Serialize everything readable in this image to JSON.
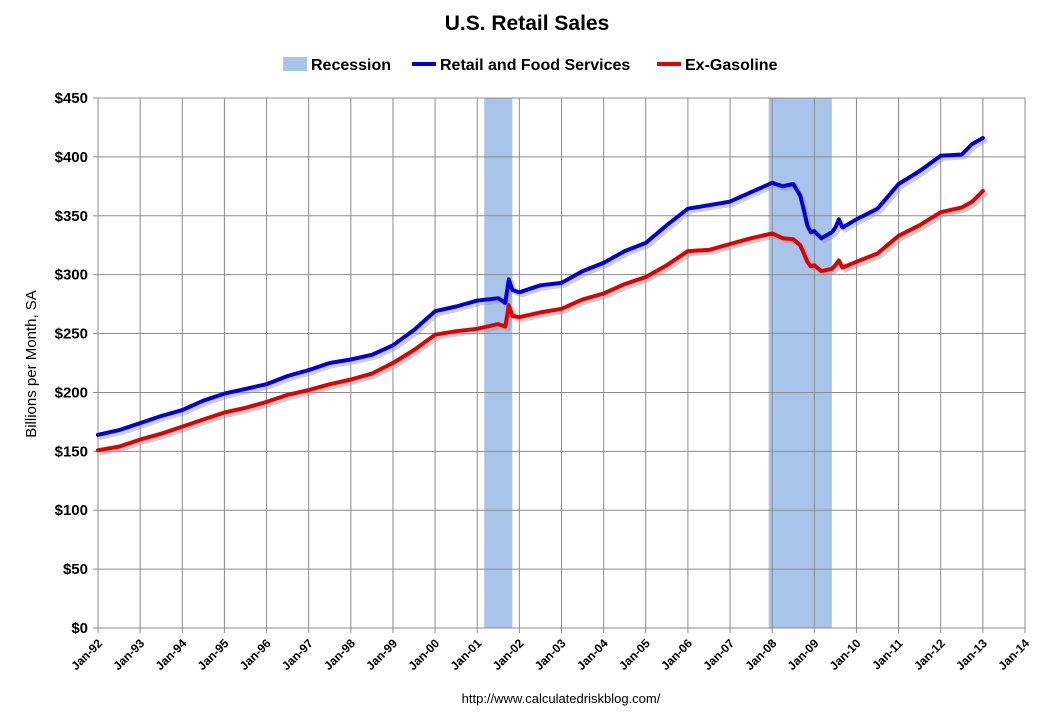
{
  "chart_data": {
    "type": "line",
    "title": "U.S. Retail Sales",
    "ylabel": "Billions per Month, SA",
    "xlabel": "",
    "footer": "http://www.calculatedriskblog.com/",
    "ylim": [
      0,
      450
    ],
    "xlim": [
      "Jan-92",
      "Jan-14"
    ],
    "x_ticks": [
      "Jan-92",
      "Jan-93",
      "Jan-94",
      "Jan-95",
      "Jan-96",
      "Jan-97",
      "Jan-98",
      "Jan-99",
      "Jan-00",
      "Jan-01",
      "Jan-02",
      "Jan-03",
      "Jan-04",
      "Jan-05",
      "Jan-06",
      "Jan-07",
      "Jan-08",
      "Jan-09",
      "Jan-10",
      "Jan-11",
      "Jan-12",
      "Jan-13",
      "Jan-14"
    ],
    "y_ticks": [
      "$0",
      "$50",
      "$100",
      "$150",
      "$200",
      "$250",
      "$300",
      "$350",
      "$400",
      "$450"
    ],
    "grid": true,
    "legend_position": "top",
    "recessions": [
      {
        "start": "Mar-01",
        "end": "Nov-01"
      },
      {
        "start": "Dec-07",
        "end": "Jun-09"
      }
    ],
    "legend": [
      {
        "label": "Recession",
        "color": "#a9c4ea",
        "kind": "box"
      },
      {
        "label": "Retail and Food Services",
        "color": "#0000dd",
        "kind": "line"
      },
      {
        "label": "Ex-Gasoline",
        "color": "#e00000",
        "kind": "line"
      }
    ],
    "series": [
      {
        "name": "Retail and Food Services",
        "color": "#0000dd",
        "points": [
          [
            "Jan-92",
            164
          ],
          [
            "Jul-92",
            168
          ],
          [
            "Jan-93",
            174
          ],
          [
            "Jul-93",
            180
          ],
          [
            "Jan-94",
            185
          ],
          [
            "Jul-94",
            193
          ],
          [
            "Jan-95",
            199
          ],
          [
            "Jul-95",
            203
          ],
          [
            "Jan-96",
            207
          ],
          [
            "Jul-96",
            214
          ],
          [
            "Jan-97",
            219
          ],
          [
            "Jul-97",
            225
          ],
          [
            "Jan-98",
            228
          ],
          [
            "Jul-98",
            232
          ],
          [
            "Jan-99",
            240
          ],
          [
            "Jul-99",
            253
          ],
          [
            "Jan-00",
            269
          ],
          [
            "Jul-00",
            273
          ],
          [
            "Jan-01",
            278
          ],
          [
            "Jul-01",
            280
          ],
          [
            "Sep-01",
            276
          ],
          [
            "Oct-01",
            296
          ],
          [
            "Nov-01",
            287
          ],
          [
            "Jan-02",
            285
          ],
          [
            "Jul-02",
            291
          ],
          [
            "Jan-03",
            293
          ],
          [
            "Jul-03",
            303
          ],
          [
            "Jan-04",
            310
          ],
          [
            "Jul-04",
            320
          ],
          [
            "Jan-05",
            327
          ],
          [
            "Jul-05",
            342
          ],
          [
            "Jan-06",
            356
          ],
          [
            "Jul-06",
            359
          ],
          [
            "Jan-07",
            362
          ],
          [
            "Jul-07",
            370
          ],
          [
            "Jan-08",
            378
          ],
          [
            "Apr-08",
            375
          ],
          [
            "Jul-08",
            377
          ],
          [
            "Sep-08",
            367
          ],
          [
            "Oct-08",
            355
          ],
          [
            "Nov-08",
            342
          ],
          [
            "Dec-08",
            336
          ],
          [
            "Jan-09",
            337
          ],
          [
            "Mar-09",
            331
          ],
          [
            "Jun-09",
            336
          ],
          [
            "Jul-09",
            340
          ],
          [
            "Aug-09",
            347
          ],
          [
            "Sep-09",
            340
          ],
          [
            "Jan-10",
            347
          ],
          [
            "Jul-10",
            356
          ],
          [
            "Jan-11",
            377
          ],
          [
            "Jul-11",
            388
          ],
          [
            "Jan-12",
            401
          ],
          [
            "Jul-12",
            402
          ],
          [
            "Oct-12",
            411
          ],
          [
            "Jan-13",
            416
          ]
        ]
      },
      {
        "name": "Ex-Gasoline",
        "color": "#e00000",
        "points": [
          [
            "Jan-92",
            151
          ],
          [
            "Jul-92",
            154
          ],
          [
            "Jan-93",
            160
          ],
          [
            "Jul-93",
            165
          ],
          [
            "Jan-94",
            171
          ],
          [
            "Jul-94",
            177
          ],
          [
            "Jan-95",
            183
          ],
          [
            "Jul-95",
            187
          ],
          [
            "Jan-96",
            192
          ],
          [
            "Jul-96",
            198
          ],
          [
            "Jan-97",
            202
          ],
          [
            "Jul-97",
            207
          ],
          [
            "Jan-98",
            211
          ],
          [
            "Jul-98",
            216
          ],
          [
            "Jan-99",
            225
          ],
          [
            "Jul-99",
            236
          ],
          [
            "Jan-00",
            249
          ],
          [
            "Jul-00",
            252
          ],
          [
            "Jan-01",
            254
          ],
          [
            "Jul-01",
            258
          ],
          [
            "Sep-01",
            256
          ],
          [
            "Oct-01",
            274
          ],
          [
            "Nov-01",
            265
          ],
          [
            "Jan-02",
            264
          ],
          [
            "Jul-02",
            268
          ],
          [
            "Jan-03",
            271
          ],
          [
            "Jul-03",
            279
          ],
          [
            "Jan-04",
            284
          ],
          [
            "Jul-04",
            292
          ],
          [
            "Jan-05",
            298
          ],
          [
            "Jul-05",
            308
          ],
          [
            "Jan-06",
            320
          ],
          [
            "Jul-06",
            321
          ],
          [
            "Jan-07",
            326
          ],
          [
            "Jul-07",
            331
          ],
          [
            "Jan-08",
            335
          ],
          [
            "Apr-08",
            331
          ],
          [
            "Jul-08",
            330
          ],
          [
            "Sep-08",
            325
          ],
          [
            "Oct-08",
            318
          ],
          [
            "Nov-08",
            311
          ],
          [
            "Dec-08",
            307
          ],
          [
            "Jan-09",
            308
          ],
          [
            "Mar-09",
            303
          ],
          [
            "Jun-09",
            305
          ],
          [
            "Jul-09",
            308
          ],
          [
            "Aug-09",
            312
          ],
          [
            "Sep-09",
            306
          ],
          [
            "Jan-10",
            311
          ],
          [
            "Jul-10",
            318
          ],
          [
            "Jan-11",
            333
          ],
          [
            "Jul-11",
            342
          ],
          [
            "Jan-12",
            353
          ],
          [
            "Jul-12",
            357
          ],
          [
            "Oct-12",
            362
          ],
          [
            "Jan-13",
            371
          ]
        ]
      }
    ]
  }
}
